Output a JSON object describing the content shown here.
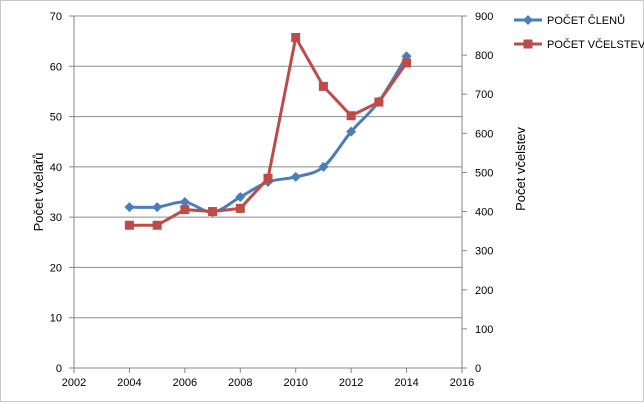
{
  "chart_data": {
    "type": "line",
    "title": "",
    "xlabel": "",
    "ylabel": "Počet včelařů",
    "y2label": "Počet včelstev",
    "xlim": [
      2002,
      2016
    ],
    "x_ticks": [
      2002,
      2004,
      2006,
      2008,
      2010,
      2012,
      2014,
      2016
    ],
    "ylim": [
      0,
      70
    ],
    "y_ticks": [
      0,
      10,
      20,
      30,
      40,
      50,
      60,
      70
    ],
    "y2lim": [
      0,
      900
    ],
    "y2_ticks": [
      0,
      100,
      200,
      300,
      400,
      500,
      600,
      700,
      800,
      900
    ],
    "grid": "horizontal",
    "legend_position": "top-right",
    "series": [
      {
        "name": "POČET ČLENŮ",
        "axis": "left",
        "marker": "diamond",
        "smooth": true,
        "color": "#4a7ebb",
        "x": [
          2004,
          2005,
          2006,
          2007,
          2008,
          2009,
          2010,
          2011,
          2012,
          2013,
          2014
        ],
        "y": [
          32,
          32,
          33,
          31,
          34,
          37,
          38,
          40,
          47,
          53,
          62
        ]
      },
      {
        "name": "POČET VČELSTEV",
        "axis": "right",
        "marker": "square",
        "smooth": false,
        "color": "#be4b48",
        "x": [
          2004,
          2005,
          2006,
          2007,
          2008,
          2009,
          2010,
          2011,
          2012,
          2013,
          2014
        ],
        "y": [
          365,
          365,
          405,
          400,
          408,
          485,
          845,
          720,
          645,
          680,
          780
        ]
      }
    ]
  }
}
